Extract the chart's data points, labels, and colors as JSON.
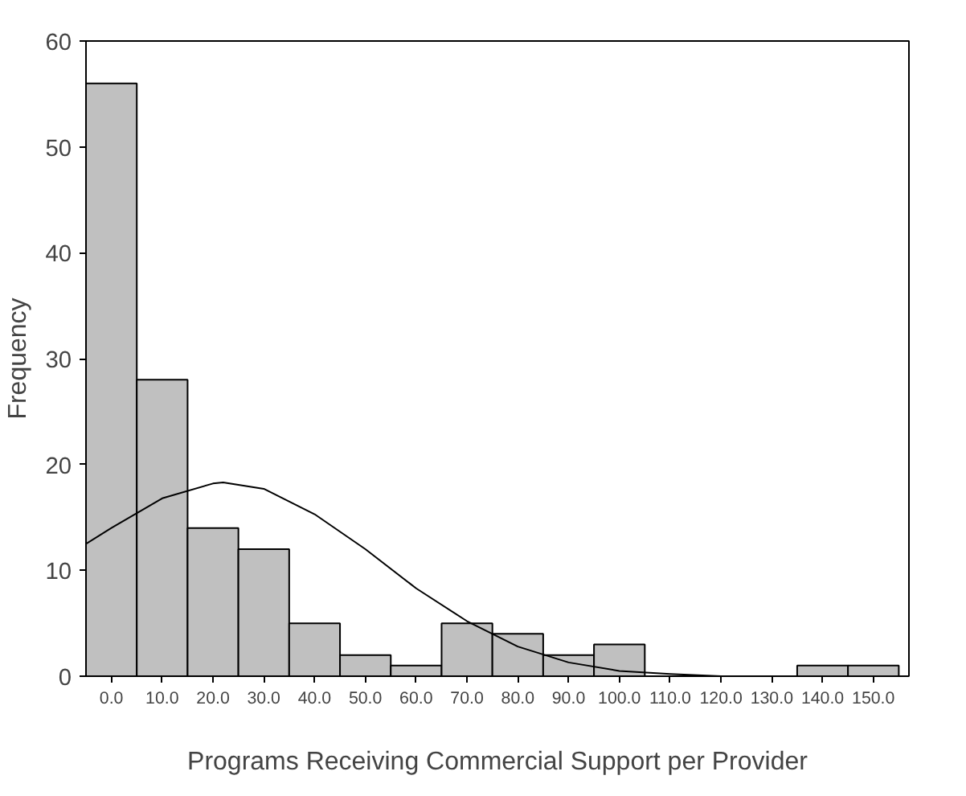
{
  "chart_data": {
    "type": "histogram",
    "xlabel": "Programs Receiving Commercial Support per Provider",
    "ylabel": "Frequency",
    "bins": [
      -5,
      5,
      15,
      25,
      35,
      45,
      55,
      65,
      75,
      85,
      95,
      105,
      115,
      125,
      135,
      145,
      155
    ],
    "values": [
      56,
      28,
      14,
      12,
      5,
      2,
      1,
      5,
      4,
      2,
      3,
      0,
      0,
      0,
      1,
      1
    ],
    "color": "#c0c0c0",
    "series": [
      {
        "type": "line",
        "color": "#000000",
        "x": [
          -5,
          0,
          10,
          20,
          22,
          30,
          40,
          50,
          60,
          70,
          80,
          90,
          100,
          110,
          120
        ],
        "values": [
          12.5,
          14,
          16.8,
          18.2,
          18.3,
          17.7,
          15.3,
          12,
          8.3,
          5.2,
          2.8,
          1.3,
          0.5,
          0.2,
          0
        ]
      }
    ],
    "xlim": [
      -5,
      157
    ],
    "ylim": [
      0,
      60
    ],
    "xticks": [
      {
        "value": 0,
        "label": "0.0"
      },
      {
        "value": 10,
        "label": "10.0"
      },
      {
        "value": 20,
        "label": "20.0"
      },
      {
        "value": 30,
        "label": "30.0"
      },
      {
        "value": 40,
        "label": "40.0"
      },
      {
        "value": 50,
        "label": "50.0"
      },
      {
        "value": 60,
        "label": "60.0"
      },
      {
        "value": 70,
        "label": "70.0"
      },
      {
        "value": 80,
        "label": "80.0"
      },
      {
        "value": 90,
        "label": "90.0"
      },
      {
        "value": 100,
        "label": "100.0"
      },
      {
        "value": 110,
        "label": "110.0"
      },
      {
        "value": 120,
        "label": "120.0"
      },
      {
        "value": 130,
        "label": "130.0"
      },
      {
        "value": 140,
        "label": "140.0"
      },
      {
        "value": 150,
        "label": "150.0"
      }
    ],
    "yticks": [
      0,
      10,
      20,
      30,
      40,
      50,
      60
    ],
    "grid": false
  }
}
